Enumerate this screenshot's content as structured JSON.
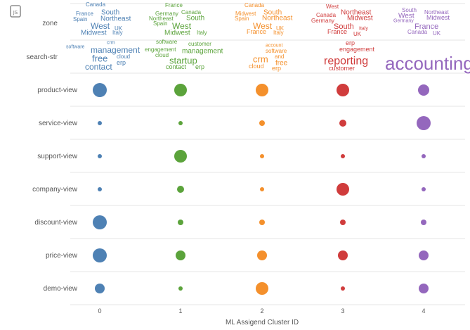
{
  "chart_data": {
    "type": "scatter",
    "xlabel": "ML Assigend Cluster ID",
    "categories": [
      "0",
      "1",
      "2",
      "3",
      "4"
    ],
    "cluster_colors": [
      "#4e81b4",
      "#5ba33b",
      "#f4902c",
      "#d03c3c",
      "#9467bd"
    ],
    "wordcloud_rows": [
      {
        "label": "zone",
        "clusters": [
          [
            "Canada",
            "France",
            "South",
            "Spain",
            "Northeast",
            "West",
            "UK",
            "Midwest",
            "Italy"
          ],
          [
            "France",
            "Germany",
            "Canada",
            "Northeast",
            "South",
            "Spain",
            "West",
            "Midwest",
            "Italy"
          ],
          [
            "Canada",
            "Midwest",
            "South",
            "Spain",
            "Northeast",
            "West",
            "UK",
            "France",
            "Italy"
          ],
          [
            "West",
            "Northeast",
            "Canada",
            "Midwest",
            "Germany",
            "South",
            "Italy",
            "France",
            "UK"
          ],
          [
            "South",
            "Northeast",
            "West",
            "Midwest",
            "Germany",
            "France",
            "Canada",
            "UK"
          ]
        ]
      },
      {
        "label": "search-str",
        "clusters": [
          [
            "crm",
            "software",
            "management",
            "free",
            "cloud",
            "erp",
            "contact"
          ],
          [
            "software",
            "customer",
            "engagement",
            "management",
            "cloud",
            "startup",
            "contact",
            "erp"
          ],
          [
            "account",
            "software",
            "crm",
            "and",
            "free",
            "cloud",
            "erp"
          ],
          [
            "erp",
            "engagement",
            "reporting",
            "customer"
          ],
          [
            "accounting"
          ]
        ]
      }
    ],
    "bubble_rows": [
      {
        "label": "product-view",
        "values": [
          10,
          9,
          9,
          9,
          8
        ]
      },
      {
        "label": "service-view",
        "values": [
          3,
          3,
          4,
          5,
          10
        ]
      },
      {
        "label": "support-view",
        "values": [
          3,
          9,
          3,
          3,
          3
        ]
      },
      {
        "label": "company-view",
        "values": [
          3,
          5,
          3,
          9,
          3
        ]
      },
      {
        "label": "discount-view",
        "values": [
          10,
          4,
          4,
          4,
          4
        ]
      },
      {
        "label": "price-view",
        "values": [
          10,
          7,
          7,
          7,
          7
        ]
      },
      {
        "label": "demo-view",
        "values": [
          7,
          3,
          9,
          3,
          7
        ]
      }
    ],
    "grid": true
  },
  "toolbar": {
    "icon": "js-script-icon"
  }
}
